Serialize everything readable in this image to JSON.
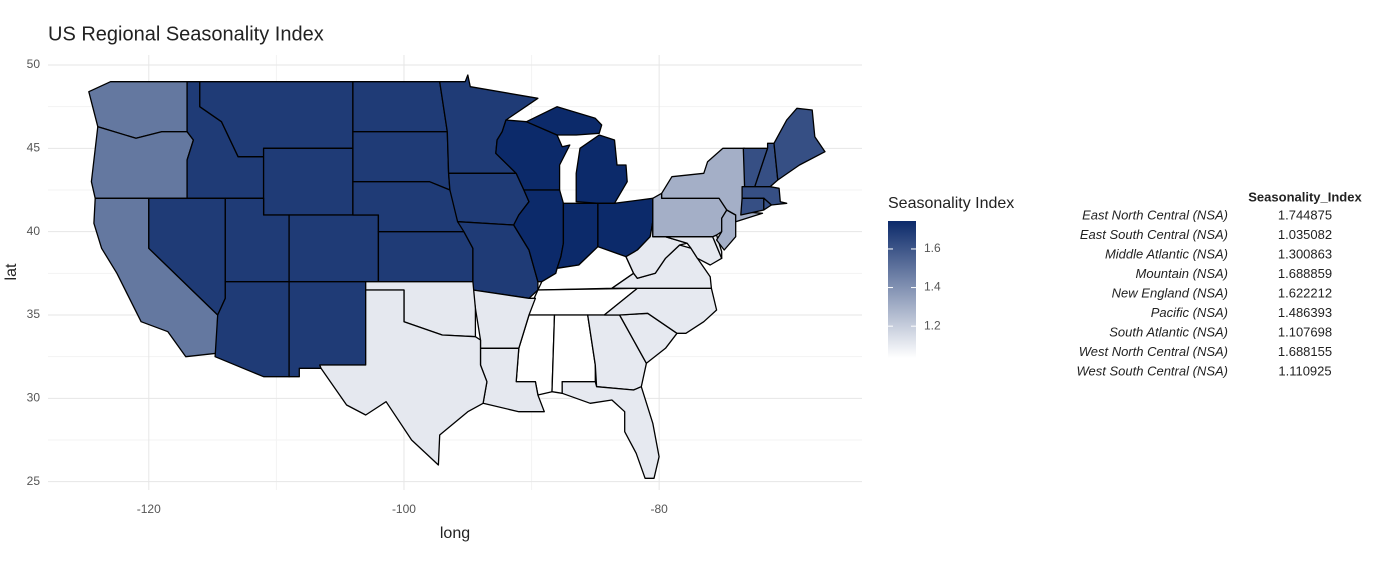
{
  "chart_data": {
    "type": "choropleth",
    "title": "US Regional Seasonality Index",
    "x_label": "long",
    "y_label": "lat",
    "xlim": [
      -127.9,
      -64.1
    ],
    "ylim": [
      24.5,
      50.6
    ],
    "xticks": [
      -120,
      -100,
      -80
    ],
    "yticks": [
      25,
      30,
      35,
      40,
      45,
      50
    ],
    "grid": true,
    "legend_title": "Seasonality Index",
    "legend_ticks": [
      1.2,
      1.4,
      1.6
    ],
    "color_low": "#ffffff",
    "color_high": "#0c2a6a",
    "table_header": "Seasonality_Index",
    "regions": [
      {
        "name": "East North Central (NSA)",
        "value": 1.744875
      },
      {
        "name": "East South Central (NSA)",
        "value": 1.035082
      },
      {
        "name": "Middle Atlantic (NSA)",
        "value": 1.300863
      },
      {
        "name": "Mountain (NSA)",
        "value": 1.688859
      },
      {
        "name": "New England (NSA)",
        "value": 1.622212
      },
      {
        "name": "Pacific (NSA)",
        "value": 1.486393
      },
      {
        "name": "South Atlantic (NSA)",
        "value": 1.107698
      },
      {
        "name": "West North Central (NSA)",
        "value": 1.688155
      },
      {
        "name": "West South Central (NSA)",
        "value": 1.110925
      }
    ]
  }
}
